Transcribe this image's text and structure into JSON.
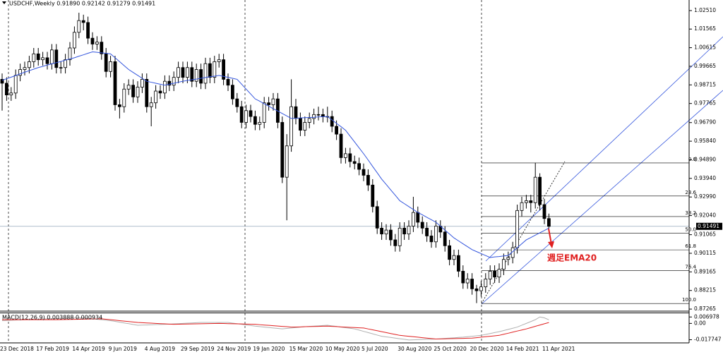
{
  "chart_data": [
    {
      "type": "candlestick",
      "header": "USDCHF,Weekly  0.91890 0.92142 0.91279 0.91491",
      "up_color": "#ffffff",
      "down_color": "#000000",
      "categories": [
        "23 Dec 2018",
        null,
        null,
        null,
        null,
        null,
        null,
        null,
        "17 Feb 2019",
        null,
        null,
        null,
        null,
        null,
        null,
        null,
        "14 Apr 2019",
        null,
        null,
        null,
        null,
        null,
        null,
        null,
        "9 Jun 2019",
        null,
        null,
        null,
        null,
        null,
        null,
        null,
        "4 Aug 2019",
        null,
        null,
        null,
        null,
        null,
        null,
        null,
        "29 Sep 2019",
        null,
        null,
        null,
        null,
        null,
        null,
        null,
        "24 Nov 2019",
        null,
        null,
        null,
        null,
        null,
        null,
        null,
        "19 Jan 2020",
        null,
        null,
        null,
        null,
        null,
        null,
        null,
        "15 Mar 2020",
        null,
        null,
        null,
        null,
        null,
        null,
        null,
        "10 May 2020",
        null,
        null,
        null,
        null,
        null,
        null,
        null,
        "5 Jul 2020",
        null,
        null,
        null,
        null,
        null,
        null,
        null,
        "30 Aug 2020",
        null,
        null,
        null,
        null,
        null,
        null,
        null,
        "25 Oct 2020",
        null,
        null,
        null,
        null,
        null,
        null,
        null,
        "20 Dec 2020",
        null,
        null,
        null,
        null,
        null,
        null,
        null,
        "14 Feb 2021",
        null,
        null,
        null,
        null,
        null,
        null,
        null,
        "11 Apr 2021",
        null
      ],
      "open": [
        0.99,
        0.988,
        0.982,
        0.983,
        0.992,
        0.995,
        0.996,
        0.999,
        1.003,
        1.0,
        1.001,
        0.998,
        1.005,
        0.996,
        0.996,
        1.0,
        1.006,
        1.014,
        1.02,
        1.019,
        1.011,
        1.008,
        1.009,
        1.003,
        0.994,
        0.999,
        0.977,
        0.976,
        0.985,
        0.987,
        0.981,
        0.986,
        0.99,
        0.976,
        0.978,
        0.984,
        0.983,
        0.989,
        0.987,
        0.991,
        0.996,
        0.991,
        0.996,
        0.989,
        0.995,
        0.988,
        0.998,
        0.991,
        0.999,
        1.0,
        0.99,
        0.987,
        0.98,
        0.976,
        0.968,
        0.974,
        0.971,
        0.967,
        0.968,
        0.978,
        0.977,
        0.98,
        0.968,
        0.94,
        0.956,
        0.976,
        0.97,
        0.964,
        0.968,
        0.97,
        0.972,
        0.972,
        0.971,
        0.971,
        0.966,
        0.962,
        0.95,
        0.952,
        0.948,
        0.947,
        0.944,
        0.941,
        0.936,
        0.925,
        0.914,
        0.911,
        0.913,
        0.908,
        0.905,
        0.914,
        0.911,
        0.915,
        0.922,
        0.917,
        0.914,
        0.91,
        0.907,
        0.915,
        0.912,
        0.905,
        0.898,
        0.9,
        0.892,
        0.886,
        0.888,
        0.883,
        0.882,
        0.884,
        0.888,
        0.892,
        0.889,
        0.893,
        0.898,
        0.899,
        0.904,
        0.923,
        0.927,
        0.928,
        0.927,
        0.94,
        0.926,
        0.9189
      ],
      "high": [
        0.993,
        0.991,
        0.986,
        0.995,
        0.998,
        0.999,
        1.002,
        1.006,
        1.006,
        1.004,
        1.004,
        1.008,
        1.008,
        0.999,
        1.003,
        1.009,
        1.017,
        1.024,
        1.023,
        1.022,
        1.014,
        1.012,
        1.012,
        1.006,
        1.002,
        1.002,
        0.98,
        0.988,
        0.99,
        0.99,
        0.989,
        0.993,
        0.993,
        0.981,
        0.987,
        0.987,
        0.992,
        0.992,
        0.994,
        0.999,
        0.999,
        0.999,
        0.999,
        0.998,
        0.998,
        1.001,
        1.001,
        1.002,
        1.003,
        1.003,
        0.993,
        0.99,
        0.983,
        0.979,
        0.977,
        0.977,
        0.974,
        0.971,
        0.981,
        0.981,
        0.983,
        0.983,
        0.971,
        0.962,
        0.99,
        0.98,
        0.973,
        0.971,
        0.973,
        0.975,
        0.976,
        0.975,
        0.976,
        0.974,
        0.969,
        0.965,
        0.955,
        0.955,
        0.951,
        0.95,
        0.947,
        0.944,
        0.939,
        0.928,
        0.917,
        0.916,
        0.916,
        0.911,
        0.917,
        0.917,
        0.918,
        0.93,
        0.925,
        0.92,
        0.917,
        0.913,
        0.918,
        0.918,
        0.915,
        0.908,
        0.903,
        0.903,
        0.895,
        0.891,
        0.891,
        0.885,
        0.887,
        0.891,
        0.895,
        0.895,
        0.896,
        0.901,
        0.902,
        0.907,
        0.926,
        0.93,
        0.931,
        0.931,
        0.9473,
        0.942,
        0.929,
        0.92142
      ],
      "low": [
        0.974,
        0.979,
        0.979,
        0.98,
        0.989,
        0.992,
        0.993,
        0.996,
        0.997,
        0.997,
        0.995,
        0.995,
        0.993,
        0.993,
        0.993,
        0.997,
        1.003,
        1.011,
        1.015,
        1.008,
        1.005,
        1.005,
        1.0,
        0.991,
        0.991,
        0.974,
        0.97,
        0.973,
        0.982,
        0.978,
        0.978,
        0.983,
        0.973,
        0.966,
        0.975,
        0.98,
        0.98,
        0.984,
        0.984,
        0.988,
        0.988,
        0.988,
        0.986,
        0.986,
        0.985,
        0.985,
        0.988,
        0.988,
        0.996,
        0.987,
        0.984,
        0.977,
        0.973,
        0.965,
        0.965,
        0.968,
        0.964,
        0.964,
        0.965,
        0.974,
        0.974,
        0.965,
        0.937,
        0.918,
        0.953,
        0.967,
        0.961,
        0.961,
        0.965,
        0.967,
        0.969,
        0.968,
        0.968,
        0.963,
        0.959,
        0.947,
        0.947,
        0.945,
        0.944,
        0.941,
        0.938,
        0.933,
        0.922,
        0.911,
        0.908,
        0.908,
        0.905,
        0.902,
        0.902,
        0.908,
        0.908,
        0.912,
        0.914,
        0.911,
        0.907,
        0.904,
        0.904,
        0.909,
        0.902,
        0.895,
        0.895,
        0.889,
        0.883,
        0.883,
        0.88,
        0.8757,
        0.879,
        0.881,
        0.885,
        0.886,
        0.886,
        0.89,
        0.895,
        0.896,
        0.901,
        0.92,
        0.924,
        0.922,
        0.924,
        0.923,
        0.916,
        0.91279
      ],
      "close": [
        0.988,
        0.982,
        0.983,
        0.992,
        0.995,
        0.996,
        0.999,
        1.003,
        1.0,
        1.001,
        0.998,
        1.005,
        0.996,
        0.996,
        1.0,
        1.006,
        1.014,
        1.02,
        1.019,
        1.011,
        1.008,
        1.009,
        1.003,
        0.994,
        0.999,
        0.977,
        0.976,
        0.985,
        0.987,
        0.981,
        0.986,
        0.99,
        0.976,
        0.978,
        0.984,
        0.983,
        0.989,
        0.987,
        0.991,
        0.996,
        0.991,
        0.996,
        0.989,
        0.995,
        0.988,
        0.998,
        0.991,
        0.999,
        1.0,
        0.99,
        0.987,
        0.98,
        0.976,
        0.968,
        0.974,
        0.971,
        0.967,
        0.968,
        0.978,
        0.977,
        0.98,
        0.968,
        0.94,
        0.956,
        0.976,
        0.97,
        0.964,
        0.968,
        0.97,
        0.972,
        0.972,
        0.971,
        0.971,
        0.966,
        0.962,
        0.95,
        0.952,
        0.948,
        0.947,
        0.944,
        0.941,
        0.936,
        0.925,
        0.914,
        0.911,
        0.913,
        0.908,
        0.905,
        0.914,
        0.911,
        0.915,
        0.922,
        0.917,
        0.914,
        0.91,
        0.907,
        0.915,
        0.912,
        0.905,
        0.898,
        0.9,
        0.892,
        0.886,
        0.888,
        0.883,
        0.882,
        0.884,
        0.888,
        0.892,
        0.889,
        0.893,
        0.898,
        0.899,
        0.904,
        0.923,
        0.927,
        0.928,
        0.927,
        0.94,
        0.926,
        0.9189,
        0.91491
      ],
      "overlay": {
        "color": "#3355dd",
        "values": [
          0.9895,
          0.9903,
          0.9911,
          0.9919,
          0.9928,
          0.9936,
          0.9944,
          0.9952,
          0.996,
          0.9966,
          0.9973,
          0.9979,
          0.9985,
          0.9991,
          0.9998,
          1.0004,
          1.001,
          1.0018,
          1.0025,
          1.0033,
          1.004,
          1.0038,
          1.0035,
          1.0033,
          1.003,
          1.001,
          0.999,
          0.997,
          0.995,
          0.9935,
          0.992,
          0.9905,
          0.989,
          0.9885,
          0.988,
          0.9875,
          0.987,
          0.9875,
          0.988,
          0.9885,
          0.989,
          0.9894,
          0.9898,
          0.9901,
          0.9905,
          0.9909,
          0.9913,
          0.9916,
          0.992,
          0.9915,
          0.991,
          0.9905,
          0.99,
          0.9875,
          0.985,
          0.9825,
          0.98,
          0.9788,
          0.9775,
          0.9763,
          0.975,
          0.9738,
          0.9725,
          0.9713,
          0.97,
          0.9701,
          0.9703,
          0.9704,
          0.9705,
          0.9706,
          0.9708,
          0.9709,
          0.971,
          0.9693,
          0.9675,
          0.9658,
          0.964,
          0.961,
          0.958,
          0.955,
          0.952,
          0.9488,
          0.9455,
          0.9423,
          0.939,
          0.9363,
          0.9335,
          0.9308,
          0.928,
          0.9265,
          0.925,
          0.9235,
          0.922,
          0.9208,
          0.9195,
          0.9183,
          0.917,
          0.915,
          0.913,
          0.911,
          0.909,
          0.9075,
          0.906,
          0.9045,
          0.903,
          0.902,
          0.901,
          0.9,
          0.899,
          0.8993,
          0.8995,
          0.8998,
          0.9,
          0.902,
          0.904,
          0.906,
          0.908,
          0.9092,
          0.9104,
          0.9116,
          0.9128,
          0.914
        ]
      },
      "last_price": 0.91491,
      "fib_levels": [
        {
          "label": "0.0",
          "price": 0.9473
        },
        {
          "label": "23.6",
          "price": 0.9304
        },
        {
          "label": "38.2",
          "price": 0.9199
        },
        {
          "label": "50.0",
          "price": 0.9114
        },
        {
          "label": "61.8",
          "price": 0.9029
        },
        {
          "label": "76.4",
          "price": 0.8924
        },
        {
          "label": "100.0",
          "price": 0.8755
        }
      ],
      "annotation": "週足EMA20",
      "ylim": [
        0.8716,
        1.0305
      ],
      "yticks": [
        {
          "value": 1.0251,
          "label": "1.02510"
        },
        1.01565,
        1.00615,
        0.99665,
        0.98715,
        0.97765,
        {
          "value": 0.9679,
          "label": "0.96790"
        },
        {
          "value": 0.9584,
          "label": "0.95840"
        },
        {
          "value": 0.9489,
          "label": "0.94890"
        },
        {
          "value": 0.9394,
          "label": "0.93940"
        },
        {
          "value": 0.9299,
          "label": "0.92990"
        },
        {
          "value": 0.9204,
          "label": "0.92040"
        },
        0.91065,
        0.90115,
        0.89165,
        0.88215,
        0.87265
      ]
    },
    {
      "type": "line",
      "title": "MACD(12,26,9) 0.003888 0.000934",
      "series": [
        {
          "color": "#b0b0b0",
          "values": [
            0.003,
            0.0032,
            0.0034,
            0.0036,
            0.0038,
            0.004,
            0.0042,
            0.0044,
            0.0046,
            0.0048,
            0.005,
            0.0051,
            0.0053,
            0.0054,
            0.0055,
            0.0056,
            0.0058,
            0.0059,
            0.006,
            0.0055,
            0.005,
            0.0045,
            0.004,
            0.0035,
            0.003,
            0.0022,
            0.0013,
            0.0005,
            -0.0003,
            -0.0012,
            -0.002,
            -0.0018,
            -0.0017,
            -0.0015,
            -0.0013,
            -0.0012,
            -0.001,
            -0.0008,
            -0.0005,
            -0.0003,
            0.0,
            0.0003,
            0.0005,
            0.0008,
            0.001,
            0.001,
            0.001,
            0.001,
            0.001,
            0.001,
            0.001,
            0.0003,
            -0.0003,
            -0.001,
            -0.0017,
            -0.0023,
            -0.003,
            -0.0035,
            -0.004,
            -0.0045,
            -0.005,
            -0.0055,
            -0.006,
            -0.0055,
            -0.005,
            -0.0045,
            -0.004,
            -0.0037,
            -0.0033,
            -0.003,
            -0.0027,
            -0.0023,
            -0.002,
            -0.0027,
            -0.0033,
            -0.004,
            -0.0047,
            -0.0053,
            -0.006,
            -0.0073,
            -0.0087,
            -0.01,
            -0.0113,
            -0.0127,
            -0.014,
            -0.0147,
            -0.0153,
            -0.016,
            -0.0167,
            -0.0173,
            -0.018,
            -0.0178,
            -0.0177,
            -0.0175,
            -0.0173,
            -0.0172,
            -0.017,
            -0.0167,
            -0.0163,
            -0.016,
            -0.0157,
            -0.0153,
            -0.015,
            -0.0145,
            -0.014,
            -0.0135,
            -0.013,
            -0.012,
            -0.011,
            -0.01,
            -0.009,
            -0.0078,
            -0.0065,
            -0.0053,
            -0.004,
            -0.002,
            0.0,
            0.002,
            0.004,
            0.007,
            0.006,
            0.003888
          ]
        },
        {
          "color": "#e02020",
          "values": [
            0.004,
            0.004,
            0.004,
            0.004,
            0.004,
            0.004,
            0.004,
            0.004,
            0.004,
            0.004,
            0.004,
            0.004,
            0.004,
            0.0041,
            0.0042,
            0.0043,
            0.0044,
            0.0045,
            0.0046,
            0.0047,
            0.0048,
            0.0049,
            0.005,
            0.0045,
            0.004,
            0.0035,
            0.003,
            0.0025,
            0.002,
            0.0015,
            0.001,
            0.0008,
            0.0005,
            0.0003,
            0.0,
            -0.0003,
            -0.0005,
            -0.0008,
            -0.001,
            -0.0009,
            -0.0008,
            -0.0007,
            -0.0006,
            -0.0005,
            -0.0004,
            -0.0003,
            -0.0002,
            -0.0001,
            0.0,
            -0.0001,
            -0.0003,
            -0.0004,
            -0.0005,
            -0.0006,
            -0.0008,
            -0.0009,
            -0.001,
            -0.0014,
            -0.0018,
            -0.0021,
            -0.0025,
            -0.0029,
            -0.0033,
            -0.0036,
            -0.004,
            -0.0039,
            -0.0038,
            -0.0036,
            -0.0035,
            -0.0034,
            -0.0033,
            -0.0031,
            -0.003,
            -0.0033,
            -0.0035,
            -0.0038,
            -0.004,
            -0.0043,
            -0.0045,
            -0.0048,
            -0.005,
            -0.006,
            -0.007,
            -0.008,
            -0.009,
            -0.01,
            -0.011,
            -0.012,
            -0.013,
            -0.0135,
            -0.014,
            -0.0145,
            -0.015,
            -0.0155,
            -0.016,
            -0.0165,
            -0.017,
            -0.0169,
            -0.0168,
            -0.0166,
            -0.0165,
            -0.0164,
            -0.0163,
            -0.0161,
            -0.016,
            -0.0155,
            -0.015,
            -0.0145,
            -0.014,
            -0.0135,
            -0.013,
            -0.0118,
            -0.0107,
            -0.0095,
            -0.0083,
            -0.0072,
            -0.006,
            -0.0046,
            -0.0032,
            -0.0018,
            -0.0004,
            0.000934
          ]
        }
      ],
      "ylim": [
        -0.0212,
        0.0114
      ],
      "yticks": [
        0.006978,
        {
          "value": 0,
          "label": "0.00"
        },
        -0.017747
      ]
    }
  ]
}
